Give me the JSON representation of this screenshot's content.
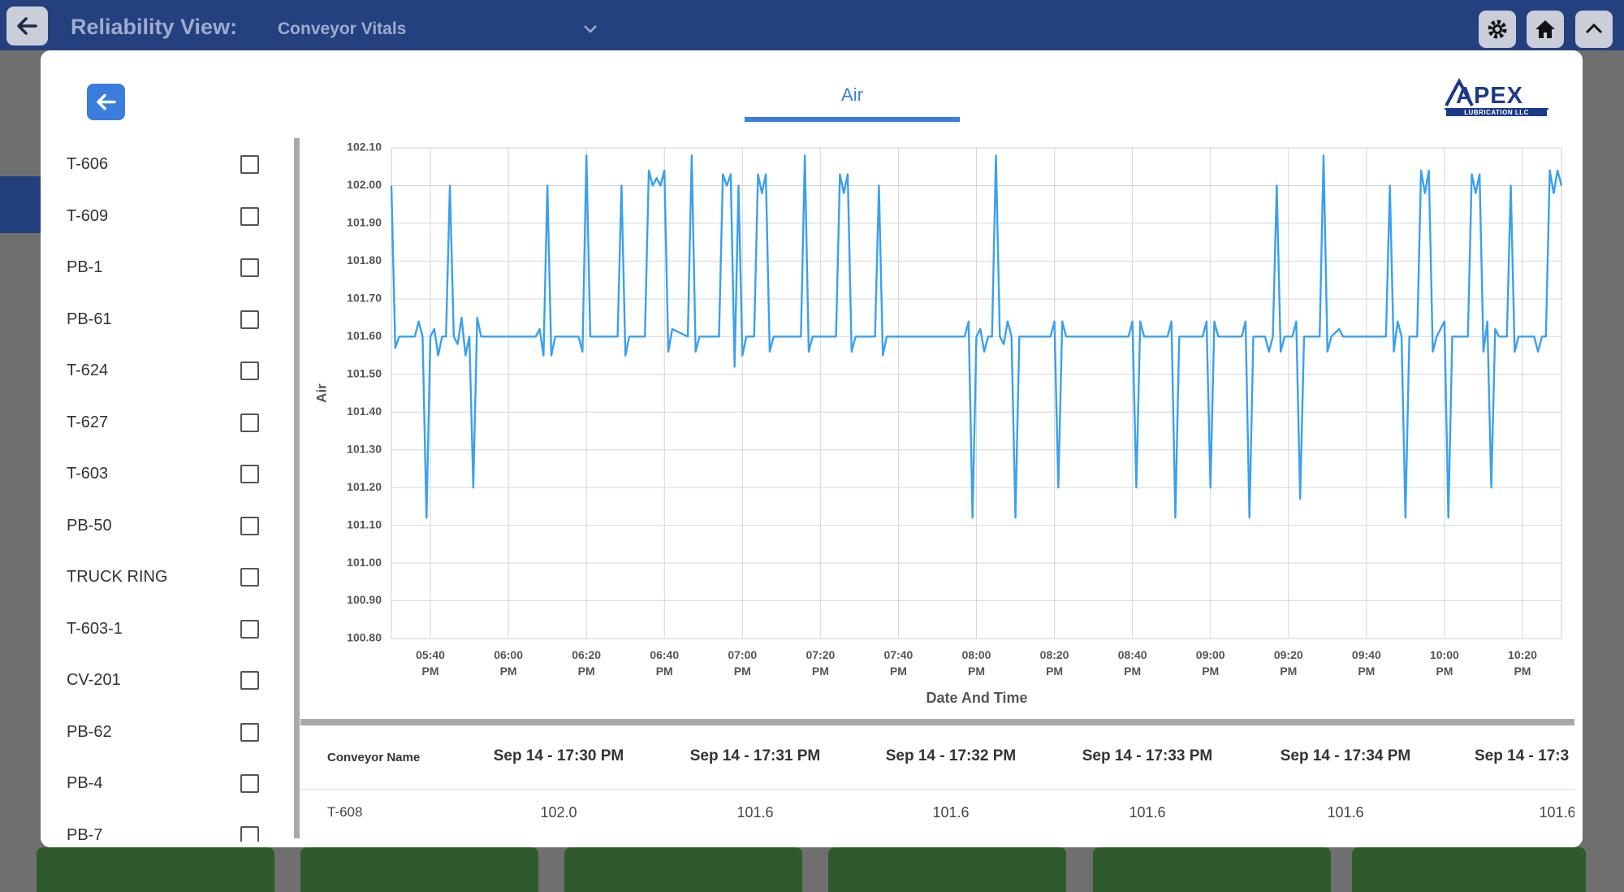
{
  "header": {
    "title": "Reliability View:",
    "subtitle": "Conveyor Vitals"
  },
  "tab": "Air",
  "logo": {
    "name": "APEX",
    "tagline": "LUBRICATION LLC"
  },
  "sidebar": {
    "items": [
      "T-606",
      "T-609",
      "PB-1",
      "PB-61",
      "T-624",
      "T-627",
      "T-603",
      "PB-50",
      "TRUCK RING",
      "T-603-1",
      "CV-201",
      "PB-62",
      "PB-4",
      "PB-7"
    ]
  },
  "chart_data": {
    "type": "line",
    "ylabel": "Air",
    "xlabel": "Date And Time",
    "color": "#3aa0ef",
    "grid": true,
    "x": [
      "05:30 PM",
      "05:31 PM",
      "05:32 PM",
      "05:36 PM",
      "05:37 PM",
      "05:38 PM",
      "05:39 PM",
      "05:40 PM",
      "05:41 PM",
      "05:42 PM",
      "05:43 PM",
      "05:44 PM",
      "05:45 PM",
      "05:46 PM",
      "05:47 PM",
      "05:48 PM",
      "05:49 PM",
      "05:50 PM",
      "05:51 PM",
      "05:52 PM",
      "05:53 PM",
      "06:07 PM",
      "06:08 PM",
      "06:09 PM",
      "06:10 PM",
      "06:11 PM",
      "06:12 PM",
      "06:18 PM",
      "06:19 PM",
      "06:20 PM",
      "06:21 PM",
      "06:28 PM",
      "06:29 PM",
      "06:30 PM",
      "06:31 PM",
      "06:35 PM",
      "06:36 PM",
      "06:37 PM",
      "06:38 PM",
      "06:39 PM",
      "06:40 PM",
      "06:41 PM",
      "06:42 PM",
      "06:46 PM",
      "06:47 PM",
      "06:48 PM",
      "06:49 PM",
      "06:54 PM",
      "06:55 PM",
      "06:56 PM",
      "06:57 PM",
      "06:58 PM",
      "06:59 PM",
      "07:00 PM",
      "07:01 PM",
      "07:03 PM",
      "07:04 PM",
      "07:05 PM",
      "07:06 PM",
      "07:07 PM",
      "07:08 PM",
      "07:15 PM",
      "07:16 PM",
      "07:17 PM",
      "07:18 PM",
      "07:24 PM",
      "07:25 PM",
      "07:26 PM",
      "07:27 PM",
      "07:28 PM",
      "07:29 PM",
      "07:34 PM",
      "07:35 PM",
      "07:36 PM",
      "07:37 PM",
      "07:57 PM",
      "07:58 PM",
      "07:59 PM",
      "08:00 PM",
      "08:01 PM",
      "08:02 PM",
      "08:03 PM",
      "08:04 PM",
      "08:05 PM",
      "08:06 PM",
      "08:07 PM",
      "08:08 PM",
      "08:09 PM",
      "08:10 PM",
      "08:11 PM",
      "08:19 PM",
      "08:20 PM",
      "08:21 PM",
      "08:22 PM",
      "08:23 PM",
      "08:39 PM",
      "08:40 PM",
      "08:41 PM",
      "08:42 PM",
      "08:43 PM",
      "08:49 PM",
      "08:50 PM",
      "08:51 PM",
      "08:52 PM",
      "08:58 PM",
      "08:59 PM",
      "09:00 PM",
      "09:01 PM",
      "09:02 PM",
      "09:08 PM",
      "09:09 PM",
      "09:10 PM",
      "09:11 PM",
      "09:14 PM",
      "09:15 PM",
      "09:16 PM",
      "09:17 PM",
      "09:18 PM",
      "09:19 PM",
      "09:21 PM",
      "09:22 PM",
      "09:23 PM",
      "09:24 PM",
      "09:28 PM",
      "09:29 PM",
      "09:30 PM",
      "09:31 PM",
      "09:33 PM",
      "09:34 PM",
      "09:45 PM",
      "09:46 PM",
      "09:47 PM",
      "09:48 PM",
      "09:49 PM",
      "09:50 PM",
      "09:51 PM",
      "09:53 PM",
      "09:54 PM",
      "09:55 PM",
      "09:56 PM",
      "09:57 PM",
      "09:58 PM",
      "10:00 PM",
      "10:01 PM",
      "10:02 PM",
      "10:06 PM",
      "10:07 PM",
      "10:08 PM",
      "10:09 PM",
      "10:10 PM",
      "10:11 PM",
      "10:12 PM",
      "10:13 PM",
      "10:14 PM",
      "10:16 PM",
      "10:17 PM",
      "10:18 PM",
      "10:19 PM",
      "10:23 PM",
      "10:24 PM",
      "10:25 PM",
      "10:26 PM",
      "10:27 PM",
      "10:28 PM",
      "10:29 PM",
      "10:30 PM"
    ],
    "values": [
      102.0,
      101.57,
      101.6,
      101.6,
      101.64,
      101.6,
      101.12,
      101.6,
      101.62,
      101.55,
      101.6,
      101.6,
      102.0,
      101.6,
      101.58,
      101.65,
      101.55,
      101.6,
      101.2,
      101.65,
      101.6,
      101.6,
      101.62,
      101.55,
      102.0,
      101.55,
      101.6,
      101.6,
      101.56,
      102.08,
      101.6,
      101.6,
      102.0,
      101.55,
      101.6,
      101.6,
      102.04,
      102.0,
      102.02,
      102.0,
      102.04,
      101.56,
      101.62,
      101.6,
      102.08,
      101.56,
      101.6,
      101.6,
      102.03,
      102.0,
      102.03,
      101.52,
      102.0,
      101.55,
      101.6,
      101.6,
      102.03,
      101.98,
      102.03,
      101.56,
      101.6,
      101.6,
      102.08,
      101.56,
      101.6,
      101.6,
      102.03,
      101.98,
      102.03,
      101.56,
      101.6,
      101.6,
      102.0,
      101.55,
      101.6,
      101.6,
      101.64,
      101.12,
      101.6,
      101.62,
      101.56,
      101.6,
      101.6,
      102.08,
      101.6,
      101.58,
      101.64,
      101.6,
      101.12,
      101.6,
      101.6,
      101.64,
      101.2,
      101.64,
      101.6,
      101.6,
      101.64,
      101.2,
      101.64,
      101.6,
      101.6,
      101.64,
      101.12,
      101.6,
      101.6,
      101.64,
      101.2,
      101.64,
      101.6,
      101.6,
      101.64,
      101.12,
      101.6,
      101.6,
      101.56,
      101.6,
      102.0,
      101.56,
      101.6,
      101.6,
      101.64,
      101.17,
      101.6,
      101.6,
      102.08,
      101.56,
      101.6,
      101.62,
      101.6,
      101.6,
      102.0,
      101.56,
      101.64,
      101.6,
      101.12,
      101.6,
      101.6,
      102.04,
      101.98,
      102.04,
      101.56,
      101.6,
      101.64,
      101.12,
      101.6,
      101.6,
      102.03,
      101.98,
      102.03,
      101.56,
      101.64,
      101.2,
      101.62,
      101.6,
      101.6,
      102.0,
      101.56,
      101.6,
      101.6,
      101.56,
      101.6,
      101.6,
      102.04,
      101.98,
      102.04,
      102.0
    ],
    "xlim": [
      "05:30 PM",
      "10:30 PM"
    ],
    "xticks": [
      "05:40 PM",
      "06:00 PM",
      "06:20 PM",
      "06:40 PM",
      "07:00 PM",
      "07:20 PM",
      "07:40 PM",
      "08:00 PM",
      "08:20 PM",
      "08:40 PM",
      "09:00 PM",
      "09:20 PM",
      "09:40 PM",
      "10:00 PM",
      "10:20 PM"
    ],
    "ylim": [
      100.8,
      102.1
    ],
    "yticks": [
      {
        "value": 100.8,
        "label": "100.80"
      },
      {
        "value": 100.9,
        "label": "100.90"
      },
      {
        "value": 101.0,
        "label": "101.00"
      },
      {
        "value": 101.1,
        "label": "101.10"
      },
      {
        "value": 101.2,
        "label": "101.20"
      },
      {
        "value": 101.3,
        "label": "101.30"
      },
      {
        "value": 101.4,
        "label": "101.40"
      },
      {
        "value": 101.5,
        "label": "101.50"
      },
      {
        "value": 101.6,
        "label": "101.60"
      },
      {
        "value": 101.7,
        "label": "101.70"
      },
      {
        "value": 101.8,
        "label": "101.80"
      },
      {
        "value": 101.9,
        "label": "101.90"
      },
      {
        "value": 102.0,
        "label": "102.00"
      },
      {
        "value": 102.1,
        "label": "102.10"
      }
    ]
  },
  "table": {
    "columns": [
      "Conveyor Name",
      "Sep 14 - 17:30 PM",
      "Sep 14 - 17:31 PM",
      "Sep 14 - 17:32 PM",
      "Sep 14 - 17:33 PM",
      "Sep 14 - 17:34 PM",
      "Sep 14 - 17:3"
    ],
    "rows": [
      [
        "T-608",
        "102.0",
        "101.6",
        "101.6",
        "101.6",
        "101.6",
        "101.6"
      ]
    ]
  }
}
